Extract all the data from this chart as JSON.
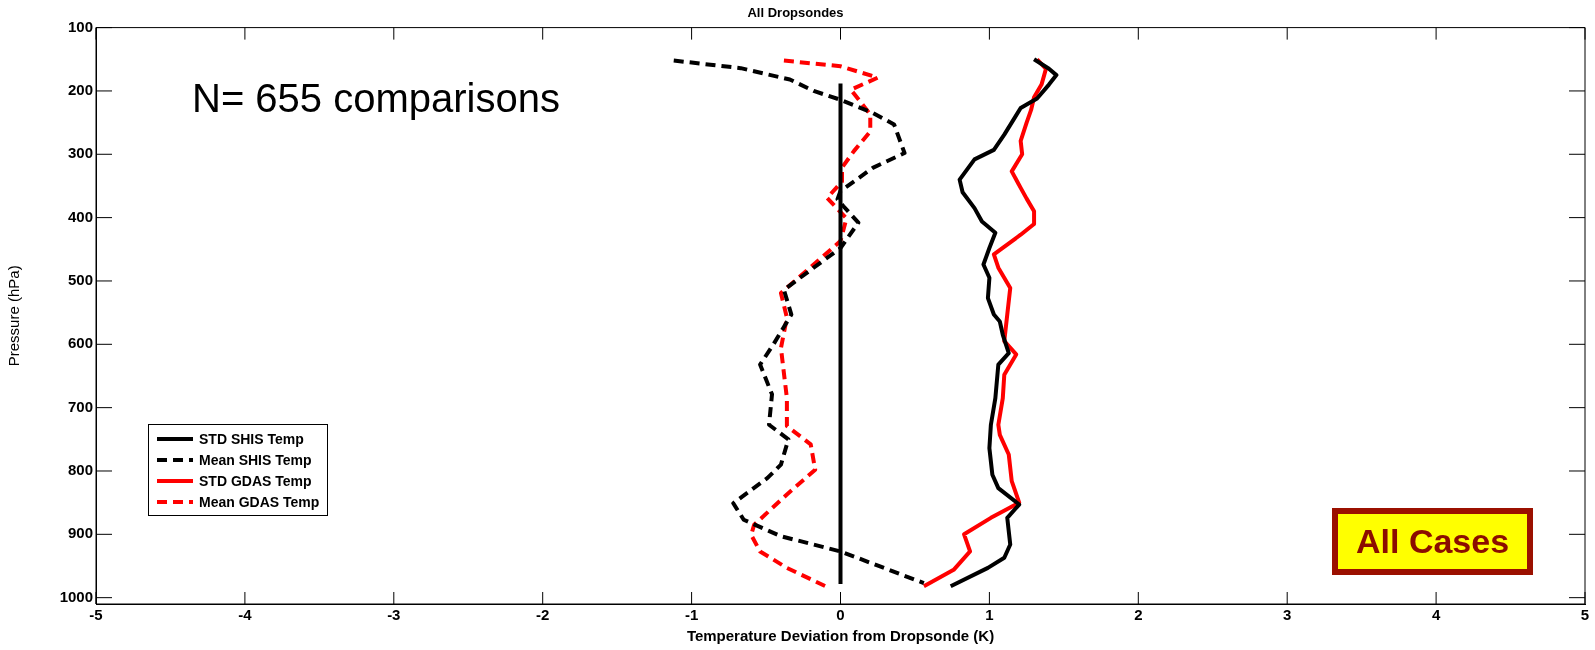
{
  "chart_data": {
    "type": "line",
    "title": "All Dropsondes",
    "xlabel": "Temperature Deviation from Dropsonde (K)",
    "ylabel": "Pressure (hPa)",
    "xlim": [
      -5,
      5
    ],
    "xticks": [
      -5,
      -4,
      -3,
      -2,
      -1,
      0,
      1,
      2,
      3,
      4,
      5
    ],
    "ylim": [
      1010,
      100
    ],
    "yticks": [
      100,
      200,
      300,
      400,
      500,
      600,
      700,
      800,
      900,
      1000
    ],
    "grid": false,
    "legend": "bottom left",
    "marker": "none",
    "ref_lines": [
      {
        "axis": "x",
        "value": 0,
        "color": "#000000",
        "line_style": "solid"
      }
    ],
    "annotations": [
      "N= 655 comparisons",
      "All Cases"
    ],
    "series": [
      {
        "name": "STD SHIS Temp",
        "color": "#000000",
        "line_style": "solid",
        "x": [
          1.3,
          1.4,
          1.45,
          1.4,
          1.32,
          1.21,
          1.1,
          1.03,
          0.9,
          0.8,
          0.82,
          0.9,
          0.95,
          1.04,
          1.0,
          0.96,
          1.0,
          0.99,
          1.03,
          1.07,
          1.09,
          1.13,
          1.06,
          1.04,
          1.01,
          1.0,
          1.02,
          1.06,
          1.2,
          1.12,
          1.14,
          1.1,
          0.99,
          0.74
        ],
        "values": [
          150,
          165,
          175,
          190,
          212,
          227,
          269,
          293,
          308,
          340,
          360,
          385,
          406,
          424,
          448,
          474,
          495,
          527,
          553,
          564,
          585,
          614,
          632,
          685,
          727,
          764,
          806,
          827,
          853,
          874,
          916,
          937,
          953,
          982
        ]
      },
      {
        "name": "Mean SHIS Temp",
        "color": "#000000",
        "line_style": "dashed",
        "x": [
          -1.12,
          -0.67,
          -0.34,
          -0.18,
          0,
          0.22,
          0.36,
          0.43,
          0.22,
          0,
          -0.02,
          0.02,
          0.12,
          0,
          -0.18,
          -0.38,
          -0.33,
          -0.45,
          -0.54,
          -0.46,
          -0.48,
          -0.35,
          -0.4,
          -0.49,
          -0.72,
          -0.65,
          -0.4,
          0,
          0.56
        ],
        "values": [
          152,
          164,
          182,
          200,
          214,
          235,
          253,
          298,
          321,
          358,
          371,
          382,
          408,
          448,
          479,
          514,
          553,
          600,
          632,
          679,
          727,
          750,
          790,
          811,
          851,
          877,
          903,
          927,
          977
        ]
      },
      {
        "name": "STD GDAS Temp",
        "color": "#ff0000",
        "line_style": "solid",
        "x": [
          1.32,
          1.38,
          1.35,
          1.3,
          1.28,
          1.25,
          1.21,
          1.22,
          1.15,
          1.21,
          1.25,
          1.3,
          1.3,
          1.21,
          1.03,
          1.06,
          1.14,
          1.12,
          1.1,
          1.18,
          1.1,
          1.09,
          1.06,
          1.07,
          1.13,
          1.15,
          1.2,
          1.01,
          0.83,
          0.87,
          0.76,
          0.56
        ],
        "values": [
          150,
          165,
          190,
          210,
          230,
          250,
          279,
          300,
          327,
          353,
          370,
          390,
          410,
          427,
          458,
          479,
          511,
          553,
          595,
          616,
          648,
          685,
          727,
          743,
          774,
          816,
          850,
          874,
          900,
          927,
          956,
          982
        ]
      },
      {
        "name": "Mean GDAS Temp",
        "color": "#ff0000",
        "line_style": "dashed",
        "x": [
          -0.38,
          0,
          0.25,
          0.07,
          0.2,
          0.2,
          0.09,
          0.01,
          0.01,
          -0.09,
          0.04,
          0,
          -0.18,
          -0.4,
          -0.36,
          -0.4,
          -0.36,
          -0.36,
          -0.2,
          -0.17,
          -0.36,
          -0.58,
          -0.6,
          -0.54,
          -0.36,
          -0.1
        ],
        "values": [
          152,
          161,
          179,
          198,
          237,
          264,
          295,
          321,
          343,
          369,
          401,
          437,
          474,
          519,
          558,
          606,
          685,
          729,
          758,
          798,
          837,
          885,
          901,
          927,
          953,
          982
        ]
      }
    ]
  }
}
